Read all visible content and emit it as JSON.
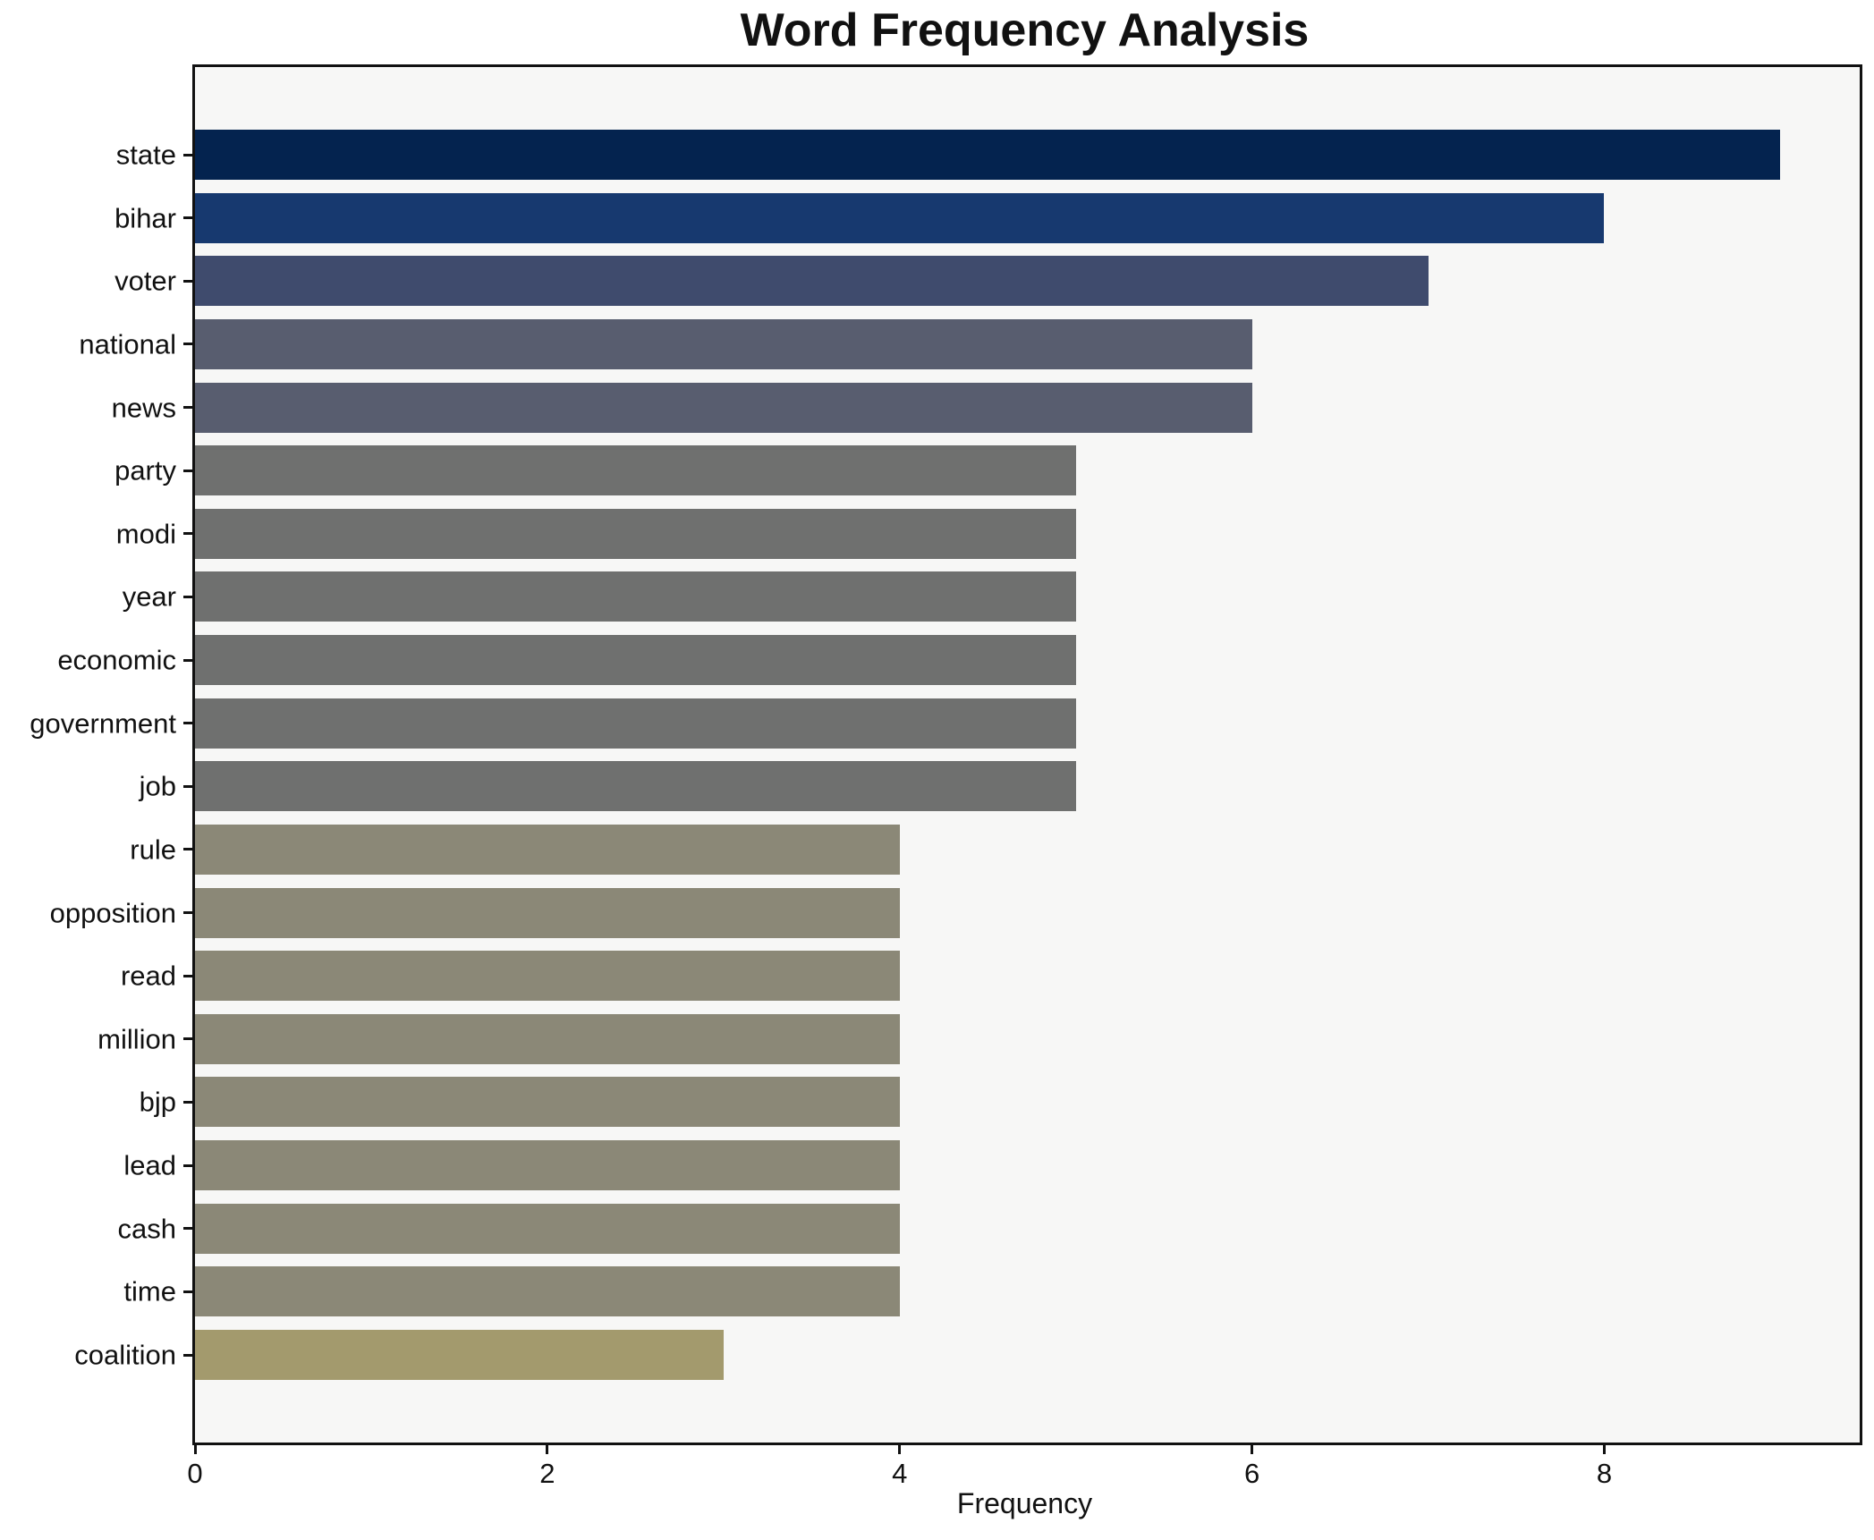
{
  "title": "Word Frequency Analysis",
  "chart_data": {
    "type": "bar",
    "orientation": "horizontal",
    "title": "Word Frequency Analysis",
    "xlabel": "Frequency",
    "ylabel": "",
    "categories": [
      "state",
      "bihar",
      "voter",
      "national",
      "news",
      "party",
      "modi",
      "year",
      "economic",
      "government",
      "job",
      "rule",
      "opposition",
      "read",
      "million",
      "bjp",
      "lead",
      "cash",
      "time",
      "coalition"
    ],
    "values": [
      9,
      8,
      7,
      6,
      6,
      5,
      5,
      5,
      5,
      5,
      5,
      4,
      4,
      4,
      4,
      4,
      4,
      4,
      4,
      3
    ],
    "bar_colors": [
      "#04234f",
      "#17396f",
      "#3f4b6d",
      "#585d6f",
      "#585d6f",
      "#6f706f",
      "#6f706f",
      "#6f706f",
      "#6f706f",
      "#6f706f",
      "#6f706f",
      "#8b8877",
      "#8b8877",
      "#8b8877",
      "#8b8877",
      "#8b8877",
      "#8b8877",
      "#8b8877",
      "#8b8877",
      "#a39a6d"
    ],
    "xlim": [
      0,
      9.45
    ],
    "x_ticks": [
      0,
      2,
      4,
      6,
      8
    ],
    "grid": false,
    "legend": null
  },
  "colors": {
    "figure_bg": "#ffffff",
    "plot_bg": "#f7f7f6",
    "frame": "#111111",
    "text": "#111111"
  }
}
